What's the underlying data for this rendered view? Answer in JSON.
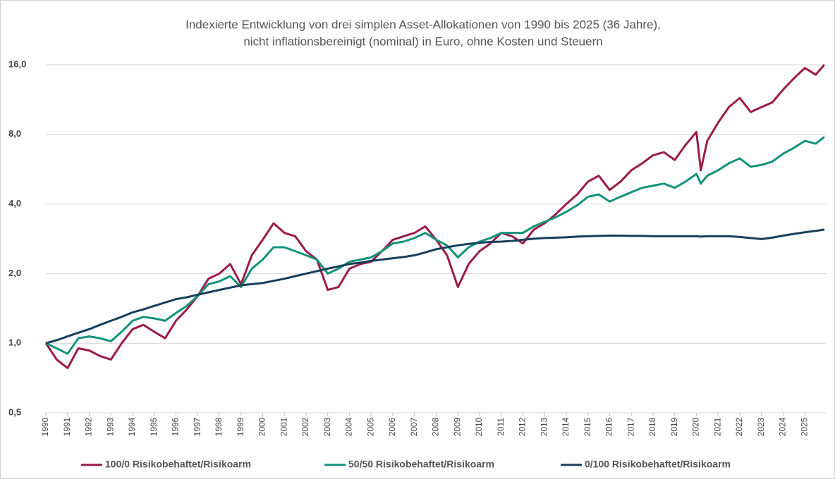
{
  "chart_data": {
    "type": "line",
    "title": [
      "Indexierte Entwicklung von drei simplen Asset-Allokationen von 1990 bis 2025 (36 Jahre),",
      "nicht inflationsbereinigt (nominal) in Euro, ohne Kosten und Steuern"
    ],
    "log_scale": true,
    "grid": true,
    "legend": "bottom",
    "ylim": [
      0.5,
      16
    ],
    "yticks": [
      {
        "value": 0.5,
        "label": "0,5"
      },
      {
        "value": 1,
        "label": "1,0"
      },
      {
        "value": 2,
        "label": "2,0"
      },
      {
        "value": 4,
        "label": "4,0"
      },
      {
        "value": 8,
        "label": "8,0"
      },
      {
        "value": 16,
        "label": "16,0"
      }
    ],
    "xlim": [
      1990,
      2026
    ],
    "xticks": [
      1990,
      1991,
      1992,
      1993,
      1994,
      1995,
      1996,
      1997,
      1998,
      1999,
      2000,
      2001,
      2002,
      2003,
      2004,
      2005,
      2006,
      2007,
      2008,
      2009,
      2010,
      2011,
      2012,
      2013,
      2014,
      2015,
      2016,
      2017,
      2018,
      2019,
      2020,
      2021,
      2022,
      2023,
      2024,
      2025
    ],
    "x": [
      1990,
      1990.5,
      1991,
      1991.5,
      1992,
      1992.5,
      1993,
      1993.5,
      1994,
      1994.5,
      1995,
      1995.5,
      1996,
      1996.5,
      1997,
      1997.5,
      1998,
      1998.5,
      1999,
      1999.5,
      2000,
      2000.5,
      2001,
      2001.5,
      2002,
      2002.5,
      2003,
      2003.5,
      2004,
      2004.5,
      2005,
      2005.5,
      2006,
      2006.5,
      2007,
      2007.5,
      2008,
      2008.5,
      2009,
      2009.5,
      2010,
      2010.5,
      2011,
      2011.5,
      2012,
      2012.5,
      2013,
      2013.5,
      2014,
      2014.5,
      2015,
      2015.5,
      2016,
      2016.5,
      2017,
      2017.5,
      2018,
      2018.5,
      2019,
      2019.5,
      2020,
      2020.2,
      2020.5,
      2021,
      2021.5,
      2022,
      2022.5,
      2023,
      2023.5,
      2024,
      2024.5,
      2025,
      2025.5,
      2025.9
    ],
    "series": [
      {
        "name": "100/0 Risikobehaftet/Risikoarm",
        "color": "#9b1b4b",
        "values": [
          1.0,
          0.85,
          0.78,
          0.95,
          0.93,
          0.88,
          0.85,
          1.0,
          1.15,
          1.2,
          1.12,
          1.05,
          1.25,
          1.4,
          1.6,
          1.9,
          2.0,
          2.2,
          1.8,
          2.4,
          2.8,
          3.3,
          3.0,
          2.9,
          2.5,
          2.3,
          1.7,
          1.75,
          2.1,
          2.2,
          2.25,
          2.5,
          2.8,
          2.9,
          3.0,
          3.2,
          2.8,
          2.4,
          1.75,
          2.2,
          2.5,
          2.7,
          3.0,
          2.9,
          2.7,
          3.1,
          3.3,
          3.6,
          4.0,
          4.4,
          5.0,
          5.3,
          4.6,
          5.0,
          5.6,
          6.0,
          6.5,
          6.7,
          6.2,
          7.2,
          8.2,
          5.6,
          7.5,
          9.0,
          10.5,
          11.5,
          10.0,
          10.5,
          11.0,
          12.5,
          14.0,
          15.5,
          14.5,
          16.0
        ]
      },
      {
        "name": "50/50 Risikobehaftet/Risikoarm",
        "color": "#13937a",
        "values": [
          1.0,
          0.95,
          0.9,
          1.05,
          1.07,
          1.05,
          1.02,
          1.12,
          1.25,
          1.3,
          1.28,
          1.25,
          1.35,
          1.45,
          1.6,
          1.8,
          1.85,
          1.95,
          1.75,
          2.1,
          2.3,
          2.6,
          2.6,
          2.5,
          2.4,
          2.3,
          2.0,
          2.1,
          2.25,
          2.3,
          2.35,
          2.5,
          2.7,
          2.75,
          2.85,
          3.0,
          2.8,
          2.65,
          2.35,
          2.6,
          2.75,
          2.85,
          3.0,
          3.0,
          3.0,
          3.2,
          3.35,
          3.5,
          3.7,
          3.95,
          4.3,
          4.4,
          4.1,
          4.3,
          4.5,
          4.7,
          4.8,
          4.9,
          4.7,
          5.0,
          5.4,
          4.9,
          5.3,
          5.6,
          6.0,
          6.3,
          5.8,
          5.9,
          6.1,
          6.6,
          7.0,
          7.5,
          7.3,
          7.8
        ]
      },
      {
        "name": "0/100 Risikobehaftet/Risikoarm",
        "color": "#153f5e",
        "values": [
          1.0,
          1.03,
          1.07,
          1.11,
          1.15,
          1.2,
          1.25,
          1.3,
          1.36,
          1.4,
          1.45,
          1.5,
          1.55,
          1.58,
          1.62,
          1.66,
          1.7,
          1.74,
          1.78,
          1.8,
          1.82,
          1.86,
          1.9,
          1.95,
          2.0,
          2.05,
          2.1,
          2.15,
          2.2,
          2.23,
          2.27,
          2.3,
          2.33,
          2.36,
          2.4,
          2.47,
          2.55,
          2.6,
          2.65,
          2.69,
          2.72,
          2.74,
          2.75,
          2.77,
          2.8,
          2.83,
          2.85,
          2.86,
          2.87,
          2.89,
          2.9,
          2.91,
          2.92,
          2.92,
          2.91,
          2.91,
          2.9,
          2.9,
          2.9,
          2.9,
          2.9,
          2.89,
          2.9,
          2.9,
          2.9,
          2.88,
          2.85,
          2.82,
          2.86,
          2.92,
          2.97,
          3.02,
          3.06,
          3.1
        ]
      }
    ]
  }
}
